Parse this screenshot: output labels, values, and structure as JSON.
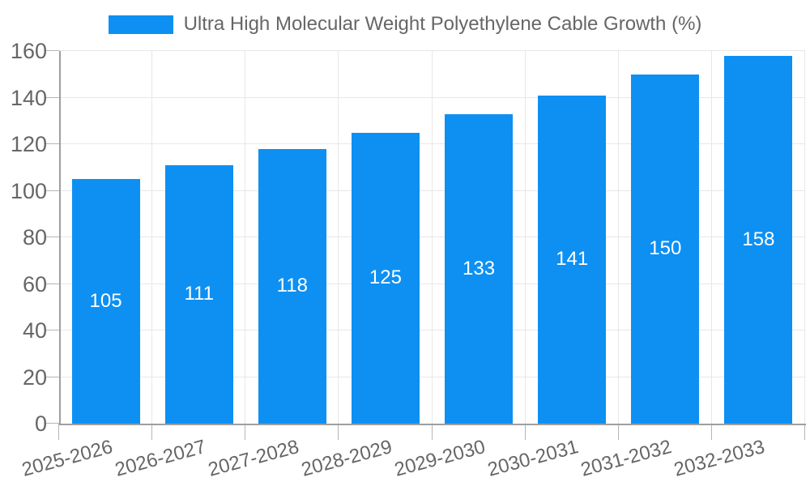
{
  "legend": {
    "label": "Ultra High Molecular Weight Polyethylene Cable Growth (%)"
  },
  "colors": {
    "bar": "#0d90f2",
    "grid": "#e7e7e7",
    "axis": "#9e9e9e",
    "tick": "#b5b5b5",
    "tick_text": "#666666",
    "legend_text": "#666666",
    "bar_label_text": "#ffffff",
    "background": "#ffffff"
  },
  "chart_data": {
    "type": "bar",
    "categories": [
      "2025-2026",
      "2026-2027",
      "2027-2028",
      "2028-2029",
      "2029-2030",
      "2030-2031",
      "2031-2032",
      "2032-2033"
    ],
    "values": [
      105,
      111,
      118,
      125,
      133,
      141,
      150,
      158
    ],
    "series": [
      {
        "name": "Ultra High Molecular Weight Polyethylene Cable Growth (%)",
        "values": [
          105,
          111,
          118,
          125,
          133,
          141,
          150,
          158
        ]
      }
    ],
    "yticks": [
      0,
      20,
      40,
      60,
      80,
      100,
      120,
      140,
      160
    ],
    "ylim": [
      0,
      160
    ],
    "xlabel": "",
    "ylabel": "",
    "grid": true,
    "legend_position": "top",
    "bar_value_labels": "inside-center",
    "x_tick_label_rotation_deg": -15
  }
}
